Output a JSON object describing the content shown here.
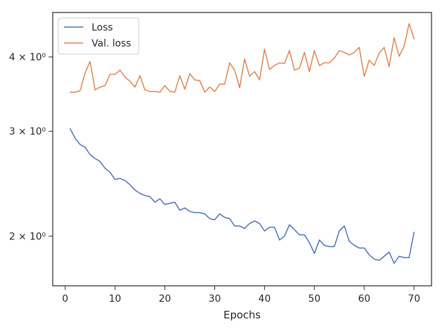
{
  "chart_data": {
    "type": "line",
    "xlabel": "Epochs",
    "ylabel": "",
    "xlim": [
      -2.5,
      73.5
    ],
    "ylim": [
      1.65,
      4.75
    ],
    "yscale": "log",
    "grid": false,
    "legend_position": "top-left",
    "xticks": [
      {
        "value": 0,
        "label": "0"
      },
      {
        "value": 10,
        "label": "10"
      },
      {
        "value": 20,
        "label": "20"
      },
      {
        "value": 30,
        "label": "30"
      },
      {
        "value": 40,
        "label": "40"
      },
      {
        "value": 50,
        "label": "50"
      },
      {
        "value": 60,
        "label": "60"
      },
      {
        "value": 70,
        "label": "70"
      }
    ],
    "yticks": [
      {
        "value": 2,
        "label": "2 × 10⁰"
      },
      {
        "value": 3,
        "label": "3 × 10⁰"
      },
      {
        "value": 4,
        "label": "4 × 10⁰"
      }
    ],
    "series": [
      {
        "name": "Loss",
        "color": "#4c72b0",
        "x": [
          1,
          2,
          3,
          4,
          5,
          6,
          7,
          8,
          9,
          10,
          11,
          12,
          13,
          14,
          15,
          16,
          17,
          18,
          19,
          20,
          21,
          22,
          23,
          24,
          25,
          26,
          27,
          28,
          29,
          30,
          31,
          32,
          33,
          34,
          35,
          36,
          37,
          38,
          39,
          40,
          41,
          42,
          43,
          44,
          45,
          46,
          47,
          48,
          49,
          50,
          51,
          52,
          53,
          54,
          55,
          56,
          57,
          58,
          59,
          60,
          61,
          62,
          63,
          64,
          65,
          66,
          67,
          68,
          69,
          70
        ],
        "values": [
          3.03,
          2.92,
          2.85,
          2.82,
          2.74,
          2.7,
          2.67,
          2.6,
          2.56,
          2.49,
          2.5,
          2.48,
          2.44,
          2.39,
          2.36,
          2.34,
          2.33,
          2.28,
          2.31,
          2.26,
          2.27,
          2.28,
          2.21,
          2.23,
          2.2,
          2.19,
          2.19,
          2.18,
          2.14,
          2.13,
          2.18,
          2.15,
          2.14,
          2.08,
          2.08,
          2.06,
          2.1,
          2.12,
          2.1,
          2.04,
          2.07,
          2.07,
          1.97,
          2.0,
          2.09,
          2.05,
          2.01,
          2.01,
          1.95,
          1.87,
          1.97,
          1.93,
          1.92,
          1.92,
          2.04,
          2.08,
          1.96,
          1.93,
          1.91,
          1.91,
          1.86,
          1.83,
          1.82,
          1.85,
          1.88,
          1.8,
          1.85,
          1.84,
          1.84,
          2.03
        ]
      },
      {
        "name": "Val. loss",
        "color": "#dd8452",
        "x": [
          1,
          2,
          3,
          4,
          5,
          6,
          7,
          8,
          9,
          10,
          11,
          12,
          13,
          14,
          15,
          16,
          17,
          18,
          19,
          20,
          21,
          22,
          23,
          24,
          25,
          26,
          27,
          28,
          29,
          30,
          31,
          32,
          33,
          34,
          35,
          36,
          37,
          38,
          39,
          40,
          41,
          42,
          43,
          44,
          45,
          46,
          47,
          48,
          49,
          50,
          51,
          52,
          53,
          54,
          55,
          56,
          57,
          58,
          59,
          60,
          61,
          62,
          63,
          64,
          65,
          66,
          67,
          68,
          69,
          70
        ],
        "values": [
          3.49,
          3.49,
          3.51,
          3.76,
          3.93,
          3.52,
          3.56,
          3.58,
          3.74,
          3.74,
          3.8,
          3.7,
          3.64,
          3.56,
          3.72,
          3.52,
          3.5,
          3.5,
          3.49,
          3.58,
          3.5,
          3.49,
          3.72,
          3.53,
          3.75,
          3.66,
          3.65,
          3.49,
          3.56,
          3.5,
          3.6,
          3.6,
          3.91,
          3.8,
          3.55,
          3.97,
          3.71,
          3.78,
          3.66,
          4.12,
          3.81,
          3.87,
          3.91,
          3.9,
          4.1,
          3.8,
          3.83,
          4.07,
          3.78,
          4.1,
          3.87,
          3.91,
          3.91,
          3.98,
          4.1,
          4.07,
          4.03,
          4.07,
          4.15,
          3.71,
          3.95,
          3.87,
          4.06,
          4.15,
          3.85,
          4.31,
          4.01,
          4.17,
          4.55,
          4.29
        ]
      }
    ]
  }
}
